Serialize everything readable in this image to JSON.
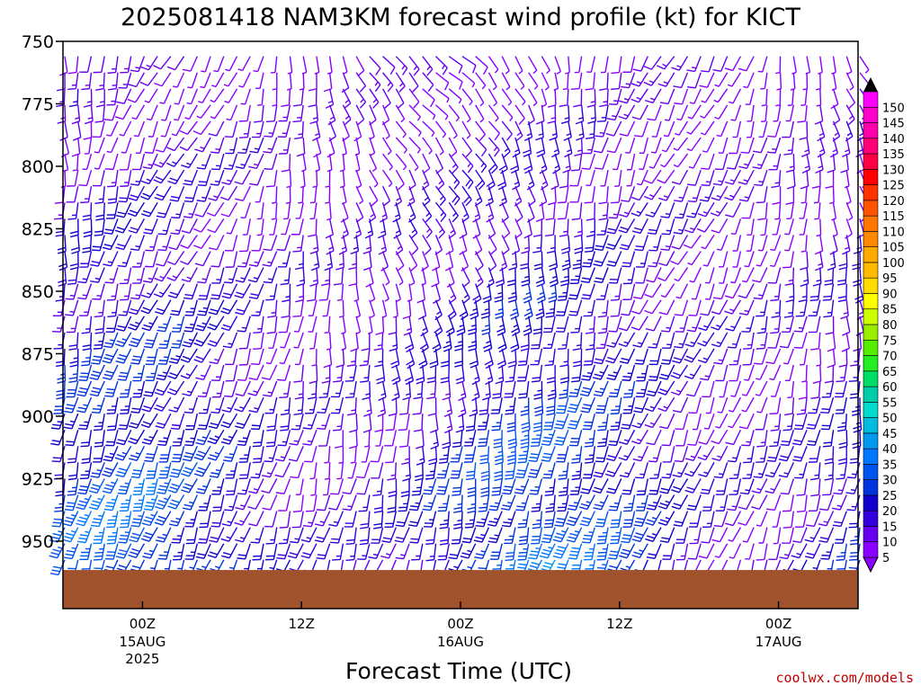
{
  "title": "2025081418 NAM3KM forecast wind profile (kt) for KICT",
  "xlabel": "Forecast Time (UTC)",
  "credit": "coolwx.com/models",
  "chart_data": {
    "type": "wind-barb-profile",
    "title": "2025081418 NAM3KM forecast wind profile (kt) for KICT",
    "xlabel": "Forecast Time (UTC)",
    "ylabel": "",
    "y_axis": {
      "ticks": [
        750,
        775,
        800,
        825,
        850,
        875,
        900,
        925,
        950
      ],
      "range": [
        750,
        977
      ],
      "inverted": true
    },
    "x_axis": {
      "ticks": [
        {
          "label": "00Z",
          "sub": [
            "15AUG",
            "2025"
          ],
          "forecast_hour": 6
        },
        {
          "label": "12Z",
          "sub": [],
          "forecast_hour": 18
        },
        {
          "label": "00Z",
          "sub": [
            "16AUG"
          ],
          "forecast_hour": 30
        },
        {
          "label": "12Z",
          "sub": [],
          "forecast_hour": 42
        },
        {
          "label": "00Z",
          "sub": [
            "17AUG"
          ],
          "forecast_hour": 54
        }
      ],
      "range_forecast_hours": [
        0,
        60
      ]
    },
    "colorbar": {
      "levels": [
        5,
        10,
        15,
        20,
        25,
        30,
        35,
        40,
        45,
        50,
        55,
        60,
        65,
        70,
        75,
        80,
        85,
        90,
        95,
        100,
        105,
        110,
        115,
        120,
        125,
        130,
        135,
        140,
        145,
        150
      ],
      "colors": [
        "#8800ff",
        "#6600ee",
        "#3300dd",
        "#1100cc",
        "#0033dd",
        "#0055ee",
        "#0077ff",
        "#0099ee",
        "#00bbdd",
        "#00ddcc",
        "#00ccaa",
        "#00dd66",
        "#22ee22",
        "#55ee00",
        "#99ee00",
        "#ccff00",
        "#ffff00",
        "#ffdd00",
        "#ffbb00",
        "#ffaa00",
        "#ff8800",
        "#ff7700",
        "#ff5500",
        "#ff3300",
        "#ff0000",
        "#ff0044",
        "#ff0077",
        "#ff00aa",
        "#ff00cc",
        "#ff00ff"
      ]
    },
    "terrain_color": "#a0522d",
    "surface_pressure_approx": 963
  }
}
